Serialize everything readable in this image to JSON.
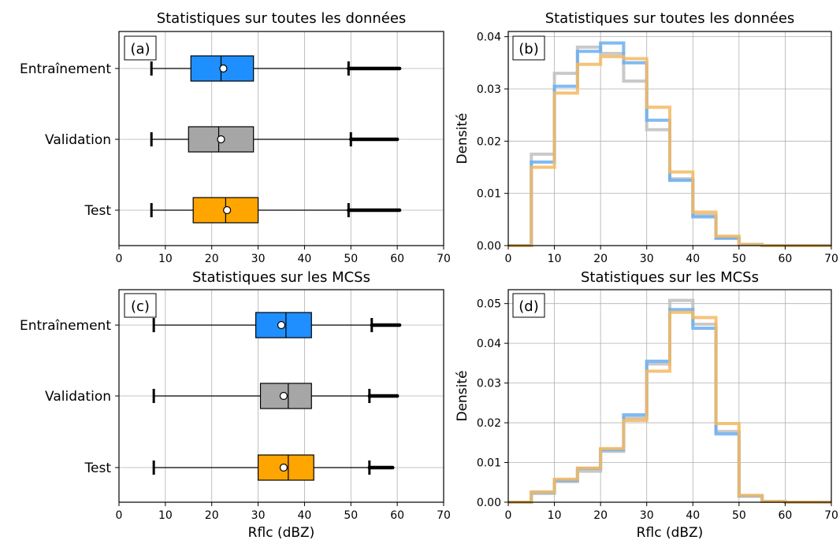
{
  "chart_data": [
    {
      "type": "boxplot",
      "panel_label": "(a)",
      "title": "Statistiques sur toutes les données",
      "xlabel": "",
      "ylabel": "",
      "xlim": [
        0,
        70
      ],
      "xticks": [
        0,
        10,
        20,
        30,
        40,
        50,
        60,
        70
      ],
      "grid": true,
      "categories": [
        "Entraînement",
        "Validation",
        "Test"
      ],
      "boxes": [
        {
          "name": "Entraînement",
          "color": "#1f8fff",
          "whisker_low": 7,
          "q1": 15.5,
          "median": 22,
          "mean": 22.5,
          "q3": 29,
          "whisker_high": 49.5,
          "outlier_max": 60.5
        },
        {
          "name": "Validation",
          "color": "#a6a6a6",
          "whisker_low": 7,
          "q1": 15,
          "median": 21.5,
          "mean": 22,
          "q3": 29,
          "whisker_high": 50,
          "outlier_max": 60
        },
        {
          "name": "Test",
          "color": "#ffa500",
          "whisker_low": 7,
          "q1": 16,
          "median": 23,
          "mean": 23.3,
          "q3": 30,
          "whisker_high": 49.5,
          "outlier_max": 60.5
        }
      ]
    },
    {
      "type": "histogram",
      "panel_label": "(b)",
      "title": "Statistiques sur toutes les données",
      "xlabel": "",
      "ylabel": "Densité",
      "xlim": [
        0,
        70
      ],
      "ylim": [
        0,
        0.041
      ],
      "xticks": [
        0,
        10,
        20,
        30,
        40,
        50,
        60,
        70
      ],
      "yticks": [
        "0.00",
        "0.01",
        "0.02",
        "0.03",
        "0.04"
      ],
      "grid": true,
      "bin_edges": [
        0,
        5,
        10,
        15,
        20,
        25,
        30,
        35,
        40,
        45,
        50,
        55,
        60,
        65,
        70
      ],
      "series": [
        {
          "color": "#c0c0c0",
          "values": [
            0,
            0.0175,
            0.033,
            0.038,
            0.0368,
            0.0315,
            0.0222,
            0.0128,
            0.0058,
            0.0015,
            0.0002,
            0,
            0,
            0
          ]
        },
        {
          "color": "#6aaef0",
          "values": [
            0,
            0.016,
            0.0305,
            0.0372,
            0.0388,
            0.035,
            0.024,
            0.0125,
            0.0055,
            0.0014,
            0.0002,
            0,
            0,
            0
          ]
        },
        {
          "color": "#f4b860",
          "values": [
            0,
            0.015,
            0.0292,
            0.0347,
            0.0362,
            0.0358,
            0.0265,
            0.0141,
            0.0064,
            0.0018,
            0.0002,
            0,
            0,
            0
          ]
        }
      ]
    },
    {
      "type": "boxplot",
      "panel_label": "(c)",
      "title": "Statistiques sur les MCSs",
      "xlabel": "Rflc (dBZ)",
      "ylabel": "",
      "xlim": [
        0,
        70
      ],
      "xticks": [
        0,
        10,
        20,
        30,
        40,
        50,
        60,
        70
      ],
      "grid": true,
      "categories": [
        "Entraînement",
        "Validation",
        "Test"
      ],
      "boxes": [
        {
          "name": "Entraînement",
          "color": "#1f8fff",
          "whisker_low": 7.5,
          "q1": 29.5,
          "median": 36,
          "mean": 35,
          "q3": 41.5,
          "whisker_high": 54.5,
          "outlier_max": 60.5
        },
        {
          "name": "Validation",
          "color": "#a6a6a6",
          "whisker_low": 7.5,
          "q1": 30.5,
          "median": 36.5,
          "mean": 35.5,
          "q3": 41.5,
          "whisker_high": 54,
          "outlier_max": 60
        },
        {
          "name": "Test",
          "color": "#ffa500",
          "whisker_low": 7.5,
          "q1": 30,
          "median": 36.5,
          "mean": 35.5,
          "q3": 42,
          "whisker_high": 54,
          "outlier_max": 59
        }
      ]
    },
    {
      "type": "histogram",
      "panel_label": "(d)",
      "title": "Statistiques sur les MCSs",
      "xlabel": "Rflc (dBZ)",
      "ylabel": "Densité",
      "xlim": [
        0,
        70
      ],
      "ylim": [
        0,
        0.0535
      ],
      "xticks": [
        0,
        10,
        20,
        30,
        40,
        50,
        60,
        70
      ],
      "yticks": [
        "0.00",
        "0.01",
        "0.02",
        "0.03",
        "0.04",
        "0.05"
      ],
      "grid": true,
      "bin_edges": [
        0,
        5,
        10,
        15,
        20,
        25,
        30,
        35,
        40,
        45,
        50,
        55,
        60,
        65,
        70
      ],
      "series": [
        {
          "color": "#c0c0c0",
          "values": [
            0,
            0.0022,
            0.0052,
            0.0078,
            0.0128,
            0.0212,
            0.0348,
            0.0508,
            0.0448,
            0.0178,
            0.0015,
            0.0002,
            0,
            0
          ]
        },
        {
          "color": "#6aaef0",
          "values": [
            0,
            0.0025,
            0.0055,
            0.0085,
            0.0132,
            0.022,
            0.0355,
            0.0485,
            0.0438,
            0.0172,
            0.0016,
            0.0002,
            0,
            0
          ]
        },
        {
          "color": "#f4b860",
          "values": [
            0,
            0.0026,
            0.0058,
            0.0086,
            0.0135,
            0.0206,
            0.033,
            0.0478,
            0.0465,
            0.0198,
            0.0017,
            0.0002,
            0,
            0
          ]
        }
      ]
    }
  ]
}
